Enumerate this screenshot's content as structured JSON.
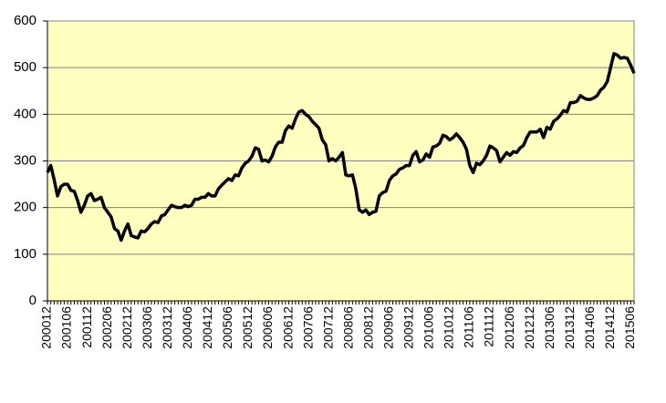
{
  "chart_data": {
    "type": "line",
    "categories": [
      "200012",
      null,
      null,
      null,
      null,
      null,
      "200106",
      null,
      null,
      null,
      null,
      null,
      "200112",
      null,
      null,
      null,
      null,
      null,
      "200206",
      null,
      null,
      null,
      null,
      null,
      "200212",
      null,
      null,
      null,
      null,
      null,
      "200306",
      null,
      null,
      null,
      null,
      null,
      "200312",
      null,
      null,
      null,
      null,
      null,
      "200406",
      null,
      null,
      null,
      null,
      null,
      "200412",
      null,
      null,
      null,
      null,
      null,
      "200506",
      null,
      null,
      null,
      null,
      null,
      "200512",
      null,
      null,
      null,
      null,
      null,
      "200606",
      null,
      null,
      null,
      null,
      null,
      "200612",
      null,
      null,
      null,
      null,
      null,
      "200706",
      null,
      null,
      null,
      null,
      null,
      "200712",
      null,
      null,
      null,
      null,
      null,
      "200806",
      null,
      null,
      null,
      null,
      null,
      "200812",
      null,
      null,
      null,
      null,
      null,
      "200906",
      null,
      null,
      null,
      null,
      null,
      "200912",
      null,
      null,
      null,
      null,
      null,
      "201006",
      null,
      null,
      null,
      null,
      null,
      "201012",
      null,
      null,
      null,
      null,
      null,
      "201106",
      null,
      null,
      null,
      null,
      null,
      "201112",
      null,
      null,
      null,
      null,
      null,
      "201206",
      null,
      null,
      null,
      null,
      null,
      "201212",
      null,
      null,
      null,
      null,
      null,
      "201306",
      null,
      null,
      null,
      null,
      null,
      "201312",
      null,
      null,
      null,
      null,
      null,
      "201406",
      null,
      null,
      null,
      null,
      null,
      "201412",
      null,
      null,
      null,
      null,
      null,
      "201506",
      null
    ],
    "values": [
      275,
      290,
      260,
      225,
      245,
      250,
      250,
      237,
      235,
      215,
      190,
      205,
      225,
      230,
      215,
      218,
      222,
      200,
      190,
      180,
      155,
      150,
      130,
      150,
      165,
      140,
      137,
      135,
      150,
      148,
      155,
      165,
      170,
      168,
      182,
      185,
      195,
      205,
      202,
      200,
      200,
      205,
      202,
      205,
      218,
      218,
      222,
      222,
      230,
      225,
      225,
      240,
      248,
      255,
      262,
      258,
      270,
      268,
      285,
      295,
      300,
      310,
      328,
      325,
      300,
      302,
      298,
      310,
      330,
      340,
      340,
      365,
      375,
      370,
      390,
      405,
      408,
      400,
      395,
      385,
      378,
      370,
      345,
      335,
      300,
      305,
      300,
      308,
      318,
      270,
      268,
      270,
      240,
      195,
      190,
      195,
      185,
      190,
      192,
      225,
      232,
      235,
      258,
      268,
      272,
      282,
      285,
      290,
      290,
      312,
      320,
      298,
      302,
      315,
      308,
      330,
      332,
      338,
      355,
      352,
      345,
      350,
      358,
      350,
      340,
      325,
      290,
      275,
      295,
      292,
      300,
      312,
      332,
      328,
      322,
      298,
      308,
      318,
      312,
      320,
      318,
      328,
      333,
      350,
      362,
      362,
      362,
      368,
      350,
      372,
      368,
      385,
      390,
      398,
      408,
      405,
      425,
      425,
      428,
      440,
      435,
      432,
      432,
      435,
      440,
      452,
      458,
      470,
      500,
      530,
      527,
      520,
      522,
      520,
      505,
      488
    ],
    "color": "#000000",
    "background": "#ffffc0",
    "ylim": [
      0,
      600
    ],
    "yticks": [
      0,
      100,
      200,
      300,
      400,
      500,
      600
    ],
    "grid": true
  }
}
